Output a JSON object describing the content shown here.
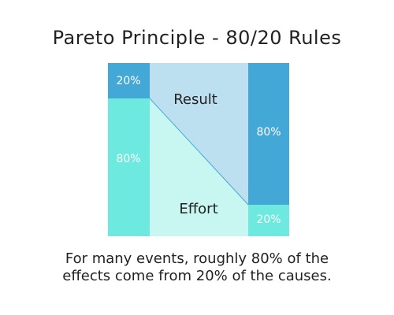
{
  "title": "Pareto Principle - 80/20 Rules",
  "left_bar": {
    "top_label": "20%",
    "bottom_label": "80%",
    "top_color": "#43a8d5",
    "bottom_color": "#6ee9df"
  },
  "right_bar": {
    "top_label": "80%",
    "bottom_label": "20%",
    "top_color": "#43a8d5",
    "bottom_color": "#6ee9df"
  },
  "regions": {
    "result_label": "Result",
    "effort_label": "Effort",
    "result_color": "#bde0f0",
    "effort_color": "#c8f6f1"
  },
  "caption": {
    "line1": "For many events, roughly 80% of the",
    "line2": "effects come from 20% of the causes."
  }
}
